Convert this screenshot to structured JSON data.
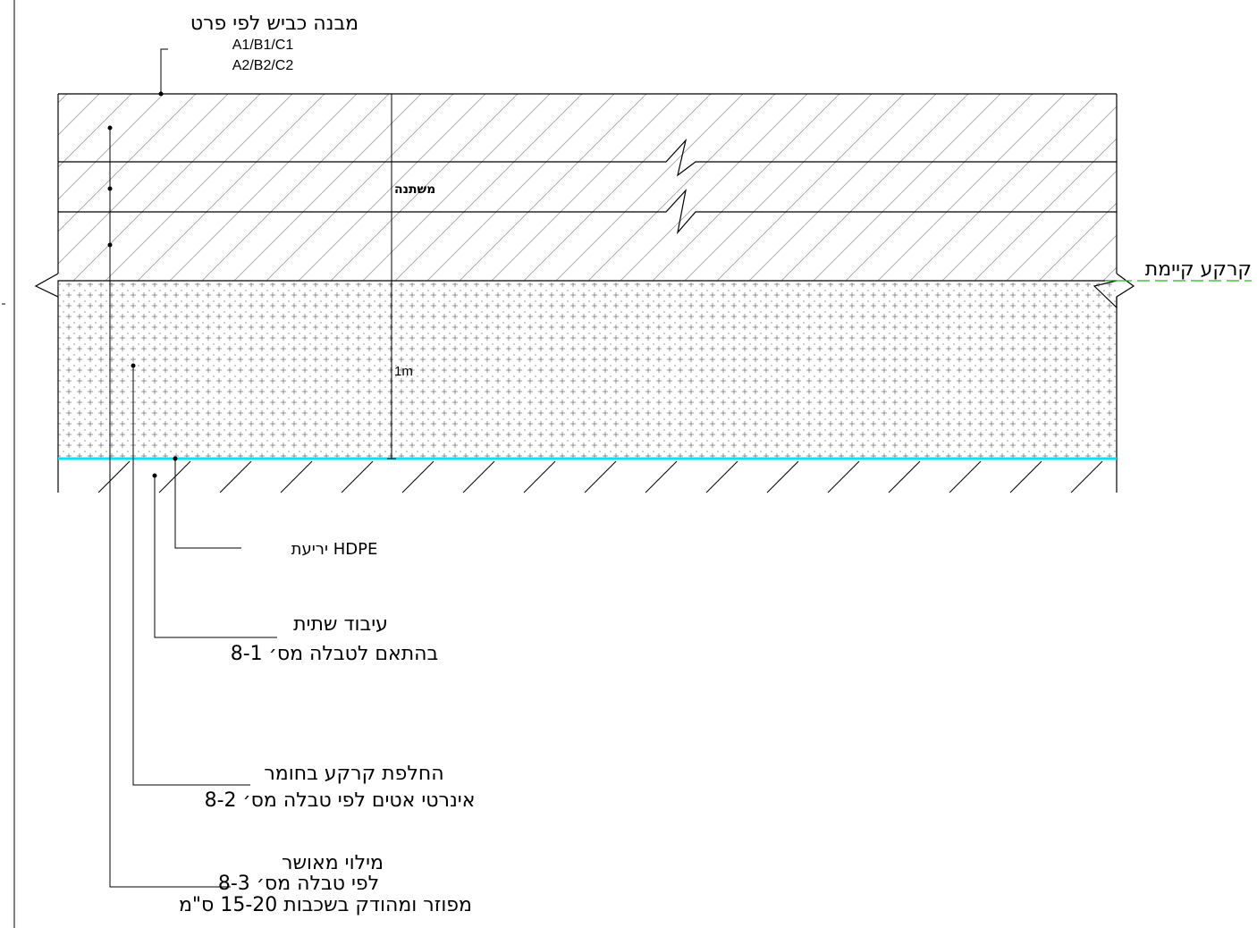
{
  "colors": {
    "line": "#000000",
    "membrane": "#00e5ee",
    "ground_marker": "#22bb22",
    "hatch": "#9a9a9a"
  },
  "labels": {
    "pavement_title": "מבנה כביש לפי פרט",
    "pavement_codes_1": "A1/B1/C1",
    "pavement_codes_2": "A2/B2/C2",
    "variable": "משתנה",
    "depth": "1m",
    "existing_ground": "קרקע קיימת",
    "membrane": "יריעת HDPE",
    "subgrade_line1": "עיבוד שתית",
    "subgrade_line2": "בהתאם לטבלה מס׳ 8-1",
    "replacement_line1": "החלפת קרקע בחומר",
    "replacement_line2": "אינרטי אטים לפי טבלה מס׳ 8-2",
    "fill_line1": "מילוי מאושר",
    "fill_line2": "לפי טבלה מס׳ 8-3",
    "fill_line3": "מפוזר ומהודק בשכבות 15-20 ס\"מ"
  }
}
